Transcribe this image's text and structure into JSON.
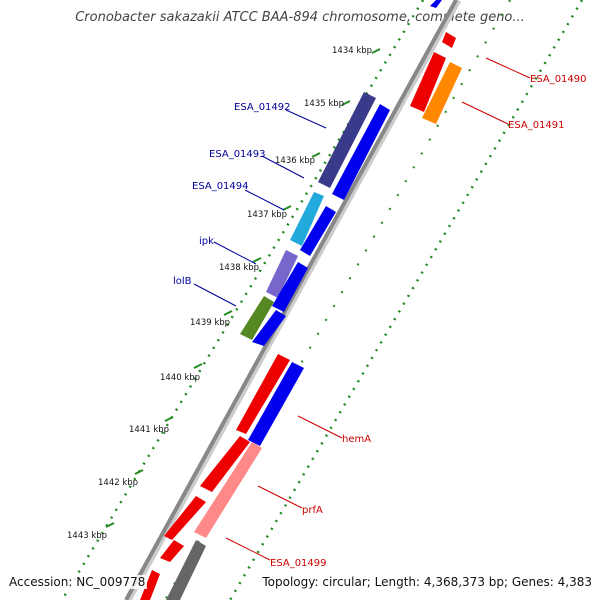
{
  "title": "Cronobacter sakazakii ATCC BAA-894 chromosome, complete geno...",
  "footer": {
    "accession": "Accession: NC_009778",
    "topology": "Topology: circular; Length: 4,368,373 bp; Genes: 4,383"
  },
  "colors": {
    "forward_gene": "#ff0000",
    "reverse_gene": "#0000ee",
    "scale_ticks": "#228b22",
    "backbone": "#888888",
    "feature_label_red": "#cc0000",
    "feature_label_blue": "#000099"
  },
  "kbp_scale": [
    "1434 kbp",
    "1435 kbp",
    "1436 kbp",
    "1437 kbp",
    "1438 kbp",
    "1439 kbp",
    "1440 kbp",
    "1441 kbp",
    "1442 kbp",
    "1443 kbp"
  ],
  "gene_labels_left": [
    "ESA_01492",
    "ESA_01493",
    "ESA_01494",
    "ipk",
    "lolB"
  ],
  "gene_labels_right": [
    "ESA_01490",
    "ESA_01491",
    "hemA",
    "prfA",
    "ESA_01499"
  ]
}
